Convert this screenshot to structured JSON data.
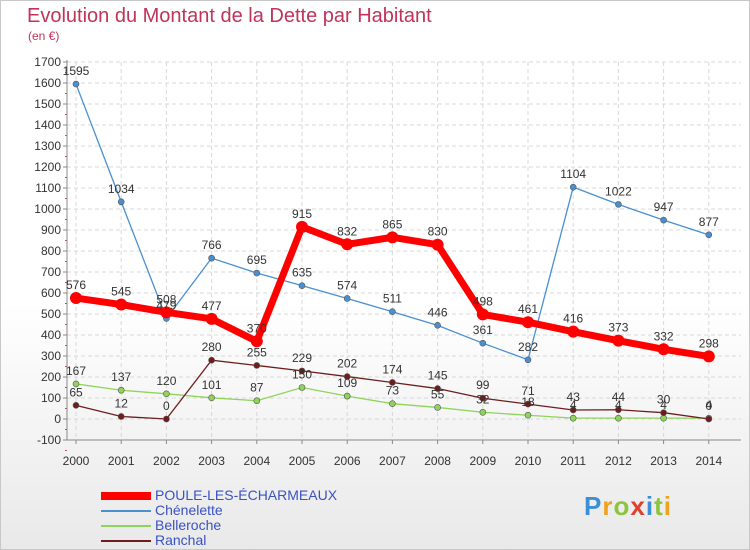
{
  "page": {
    "title": "Evolution du Montant de la Dette par Habitant",
    "unit": "(en €)",
    "logo": [
      "P",
      "r",
      "o",
      "x",
      "i",
      "t",
      "i"
    ],
    "logo_colors": [
      "#3b8fd6",
      "#f0a21e",
      "#8cc43c",
      "#e0402d",
      "#3b8fd6",
      "#8cc43c",
      "#f0a21e"
    ]
  },
  "chart_data": {
    "type": "line",
    "x": [
      "2000",
      "2001",
      "2002",
      "2003",
      "2004",
      "2005",
      "2006",
      "2007",
      "2008",
      "2009",
      "2010",
      "2011",
      "2012",
      "2013",
      "2014"
    ],
    "ylim": [
      -100,
      1700
    ],
    "yticks": [
      -100,
      0,
      100,
      200,
      300,
      400,
      500,
      600,
      700,
      800,
      900,
      1000,
      1100,
      1200,
      1300,
      1400,
      1500,
      1600,
      1700
    ],
    "grid": true,
    "series": [
      {
        "name": "Chénelette",
        "color": "#4a90d0",
        "thick": false,
        "values": [
          1595,
          1034,
          479,
          766,
          695,
          635,
          574,
          511,
          446,
          361,
          282,
          1104,
          1022,
          947,
          877
        ]
      },
      {
        "name": "Belleroche",
        "color": "#8fd45a",
        "thick": false,
        "values": [
          167,
          137,
          120,
          101,
          87,
          150,
          109,
          73,
          55,
          32,
          18,
          4,
          4,
          4,
          4
        ]
      },
      {
        "name": "Ranchal",
        "color": "#6e1d1d",
        "thick": false,
        "values": [
          65,
          12,
          0,
          280,
          255,
          229,
          202,
          174,
          145,
          99,
          71,
          43,
          44,
          30,
          0
        ]
      },
      {
        "name": "POULE-LES-ÉCHARMEAUX",
        "color": "#ff0000",
        "thick": true,
        "values": [
          576,
          545,
          508,
          477,
          370,
          915,
          832,
          865,
          830,
          498,
          461,
          416,
          373,
          332,
          298
        ]
      }
    ],
    "data_labels": [
      [
        "1595",
        "1034",
        "479",
        "766",
        "695",
        "635",
        "574",
        "511",
        "446",
        "361",
        "282",
        "1104",
        "1022",
        "947",
        "877"
      ],
      [
        "167",
        "137",
        "120",
        "101",
        "87",
        "150",
        "109",
        "73",
        "55",
        "32",
        "18",
        "4",
        "4",
        "4",
        "4"
      ],
      [
        "65",
        "12",
        "0",
        "280",
        "255",
        "229",
        "202",
        "174",
        "145",
        "99",
        "71",
        "43",
        "44",
        "30",
        "0"
      ],
      [
        "576",
        "545",
        "508",
        "477",
        "370",
        "915",
        "832",
        "865",
        "830",
        "498",
        "461",
        "416",
        "373",
        "332",
        "298"
      ]
    ]
  }
}
